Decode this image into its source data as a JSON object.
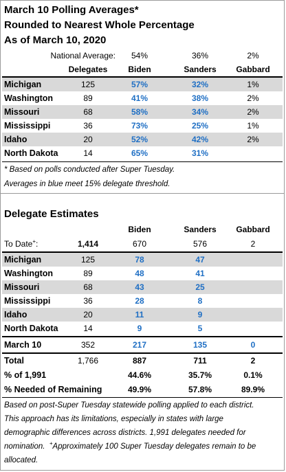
{
  "polling": {
    "title_lines": [
      "March 10 Polling Averages*",
      "Rounded to Nearest Whole Percentage",
      "As of March 10, 2020"
    ],
    "national": {
      "label": "National Average:",
      "biden": "54%",
      "sanders": "36%",
      "gabbard": "2%"
    },
    "headers": {
      "delegates": "Delegates",
      "biden": "Biden",
      "sanders": "Sanders",
      "gabbard": "Gabbard"
    },
    "rows": [
      {
        "state": "Michigan",
        "delegates": "125",
        "biden": "57%",
        "sanders": "32%",
        "gabbard": "1%"
      },
      {
        "state": "Washington",
        "delegates": "89",
        "biden": "41%",
        "sanders": "38%",
        "gabbard": "2%"
      },
      {
        "state": "Missouri",
        "delegates": "68",
        "biden": "58%",
        "sanders": "34%",
        "gabbard": "2%"
      },
      {
        "state": "Mississippi",
        "delegates": "36",
        "biden": "73%",
        "sanders": "25%",
        "gabbard": "1%"
      },
      {
        "state": "Idaho",
        "delegates": "20",
        "biden": "52%",
        "sanders": "42%",
        "gabbard": "2%"
      },
      {
        "state": "North Dakota",
        "delegates": "14",
        "biden": "65%",
        "sanders": "31%",
        "gabbard": ""
      }
    ],
    "notes": [
      "* Based on polls conducted after Super Tuesday.",
      "Averages in blue meet 15% delegate threshold."
    ]
  },
  "estimates": {
    "title": "Delegate Estimates",
    "headers": {
      "biden": "Biden",
      "sanders": "Sanders",
      "gabbard": "Gabbard"
    },
    "to_date": {
      "label": "To Date",
      "marker": "+",
      "suffix": ":",
      "total": "1,414",
      "biden": "670",
      "sanders": "576",
      "gabbard": "2"
    },
    "rows": [
      {
        "state": "Michigan",
        "delegates": "125",
        "biden": "78",
        "sanders": "47",
        "gabbard": ""
      },
      {
        "state": "Washington",
        "delegates": "89",
        "biden": "48",
        "sanders": "41",
        "gabbard": ""
      },
      {
        "state": "Missouri",
        "delegates": "68",
        "biden": "43",
        "sanders": "25",
        "gabbard": ""
      },
      {
        "state": "Mississippi",
        "delegates": "36",
        "biden": "28",
        "sanders": "8",
        "gabbard": ""
      },
      {
        "state": "Idaho",
        "delegates": "20",
        "biden": "11",
        "sanders": "9",
        "gabbard": ""
      },
      {
        "state": "North Dakota",
        "delegates": "14",
        "biden": "9",
        "sanders": "5",
        "gabbard": ""
      }
    ],
    "march10": {
      "label": "March 10",
      "delegates": "352",
      "biden": "217",
      "sanders": "135",
      "gabbard": "0"
    },
    "total": {
      "label": "Total",
      "delegates": "1,766",
      "biden": "887",
      "sanders": "711",
      "gabbard": "2"
    },
    "pct_of": {
      "label": "% of 1,991",
      "biden": "44.6%",
      "sanders": "35.7%",
      "gabbard": "0.1%"
    },
    "pct_needed": {
      "label": "% Needed of Remaining",
      "biden": "49.9%",
      "sanders": "57.8%",
      "gabbard": "89.9%"
    },
    "notes": [
      "Based on post-Super Tuesday statewide polling applied to each district.",
      "This approach has its limitations, especially in states with large",
      "demographic differences across districts. 1,991 delegates needed for",
      "nomination.",
      "+",
      "Approximately 100 Super Tuesday delegates remain to be",
      "allocated."
    ]
  },
  "colors": {
    "highlight_blue": "#1f6fc4",
    "row_shade": "#d9d9d9"
  }
}
